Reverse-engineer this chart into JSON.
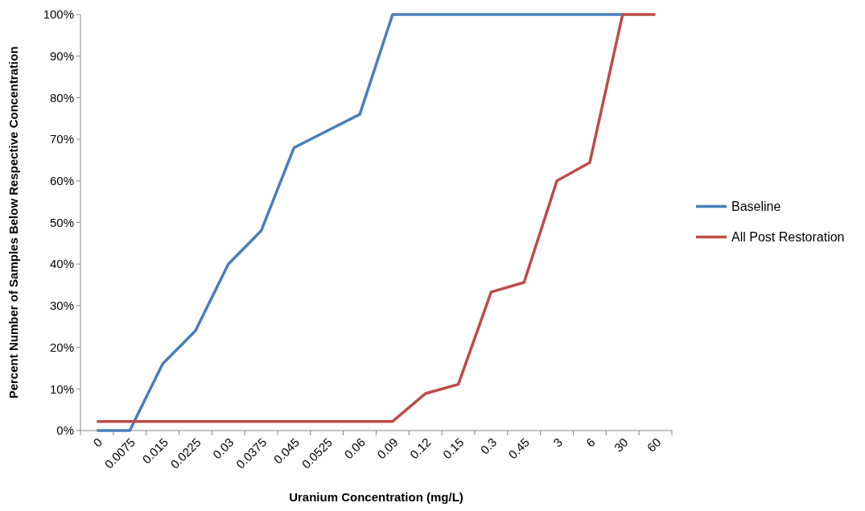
{
  "chart_data": {
    "type": "line",
    "xlabel": "Uranium Concentration (mg/L)",
    "ylabel": "Percent Number of Samples Below Respective Concentration",
    "categories": [
      "0",
      "0.0075",
      "0.015",
      "0.0225",
      "0.03",
      "0.0375",
      "0.045",
      "0.0525",
      "0.06",
      "0.09",
      "0.12",
      "0.15",
      "0.3",
      "0.45",
      "3",
      "6",
      "30",
      "60"
    ],
    "series": [
      {
        "name": "Baseline",
        "color": "#4a7ebb",
        "values": [
          0,
          0,
          16,
          24,
          40,
          48,
          68,
          72,
          76,
          100,
          100,
          100,
          100,
          100,
          100,
          100,
          100,
          null
        ]
      },
      {
        "name": "All Post Restoration",
        "color": "#be4b48",
        "values": [
          2.2,
          2.2,
          2.2,
          2.2,
          2.2,
          2.2,
          2.2,
          2.2,
          2.2,
          2.2,
          8.9,
          11.1,
          33.3,
          35.6,
          60,
          64.4,
          100,
          100
        ]
      }
    ],
    "ylim": [
      0,
      100
    ],
    "yticks": [
      {
        "value": 0,
        "label": "0%"
      },
      {
        "value": 10,
        "label": "10%"
      },
      {
        "value": 20,
        "label": "20%"
      },
      {
        "value": 30,
        "label": "30%"
      },
      {
        "value": 40,
        "label": "40%"
      },
      {
        "value": 50,
        "label": "50%"
      },
      {
        "value": 60,
        "label": "60%"
      },
      {
        "value": 70,
        "label": "70%"
      },
      {
        "value": 80,
        "label": "80%"
      },
      {
        "value": 90,
        "label": "90%"
      },
      {
        "value": 100,
        "label": "100%"
      }
    ],
    "legend": "right",
    "grid": false,
    "marker": "none",
    "line_style": "solid"
  }
}
